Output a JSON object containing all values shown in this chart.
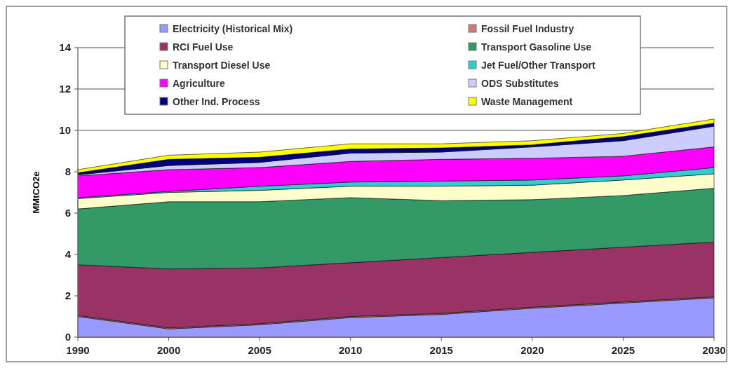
{
  "chart_data": {
    "type": "area",
    "stacked": true,
    "ylabel": "MMtCO2e",
    "categories": [
      "1990",
      "2000",
      "2005",
      "2010",
      "2015",
      "2020",
      "2025",
      "2030"
    ],
    "ylim": [
      0,
      14
    ],
    "yticks": [
      0,
      2,
      4,
      6,
      8,
      10,
      12,
      14
    ],
    "grid": "y",
    "legend": "top",
    "series": [
      {
        "name": "Electricity (Historical Mix)",
        "color": "#9999ff",
        "values": [
          1.0,
          0.4,
          0.6,
          0.95,
          1.1,
          1.4,
          1.65,
          1.9
        ]
      },
      {
        "name": "Fossil Fuel Industry",
        "color": "#cc7a7a",
        "values": [
          0.05,
          0.05,
          0.05,
          0.05,
          0.05,
          0.05,
          0.05,
          0.05
        ]
      },
      {
        "name": "RCI Fuel Use",
        "color": "#993366",
        "values": [
          2.45,
          2.85,
          2.7,
          2.6,
          2.7,
          2.65,
          2.65,
          2.65
        ]
      },
      {
        "name": "Transport Gasoline Use",
        "color": "#339966",
        "values": [
          2.7,
          3.25,
          3.2,
          3.15,
          2.75,
          2.55,
          2.5,
          2.6
        ]
      },
      {
        "name": "Transport Diesel Use",
        "color": "#ffffcc",
        "values": [
          0.5,
          0.45,
          0.55,
          0.55,
          0.7,
          0.7,
          0.75,
          0.7
        ]
      },
      {
        "name": "Jet Fuel/Other Transport",
        "color": "#33cccc",
        "values": [
          0.05,
          0.05,
          0.2,
          0.2,
          0.25,
          0.25,
          0.2,
          0.3
        ]
      },
      {
        "name": "Agriculture",
        "color": "#ff00ff",
        "values": [
          1.05,
          1.05,
          0.9,
          1.0,
          1.05,
          1.05,
          0.95,
          1.0
        ]
      },
      {
        "name": "ODS Substitutes",
        "color": "#ccccff",
        "values": [
          0.05,
          0.2,
          0.25,
          0.4,
          0.35,
          0.55,
          0.75,
          1.0
        ]
      },
      {
        "name": "Other Ind. Process",
        "color": "#000080",
        "values": [
          0.1,
          0.3,
          0.25,
          0.2,
          0.2,
          0.1,
          0.2,
          0.15
        ]
      },
      {
        "name": "Waste Management",
        "color": "#ffff00",
        "values": [
          0.15,
          0.2,
          0.25,
          0.25,
          0.2,
          0.2,
          0.15,
          0.2
        ]
      }
    ]
  }
}
